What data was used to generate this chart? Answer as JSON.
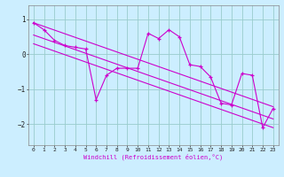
{
  "xlabel": "Windchill (Refroidissement éolien,°C)",
  "bg_color": "#cceeff",
  "line_color": "#cc00cc",
  "grid_color": "#99cccc",
  "xlim": [
    -0.5,
    23.5
  ],
  "ylim": [
    -2.6,
    1.4
  ],
  "yticks": [
    -2,
    -1,
    0,
    1
  ],
  "xticks": [
    0,
    1,
    2,
    3,
    4,
    5,
    6,
    7,
    8,
    9,
    10,
    11,
    12,
    13,
    14,
    15,
    16,
    17,
    18,
    19,
    20,
    21,
    22,
    23
  ],
  "data_x": [
    0,
    1,
    2,
    3,
    4,
    5,
    6,
    7,
    8,
    9,
    10,
    11,
    12,
    13,
    14,
    15,
    16,
    17,
    18,
    19,
    20,
    21,
    22,
    23
  ],
  "data_y": [
    0.9,
    0.7,
    0.4,
    0.25,
    0.2,
    0.15,
    -1.3,
    -0.6,
    -0.4,
    -0.4,
    -0.4,
    0.6,
    0.45,
    0.7,
    0.5,
    -0.3,
    -0.35,
    -0.65,
    -1.4,
    -1.45,
    -0.55,
    -0.6,
    -2.1,
    -1.55
  ],
  "reg_lines": [
    {
      "x": [
        0,
        23
      ],
      "y": [
        0.9,
        -1.5
      ]
    },
    {
      "x": [
        0,
        23
      ],
      "y": [
        0.55,
        -1.85
      ]
    },
    {
      "x": [
        0,
        23
      ],
      "y": [
        0.3,
        -2.1
      ]
    }
  ]
}
